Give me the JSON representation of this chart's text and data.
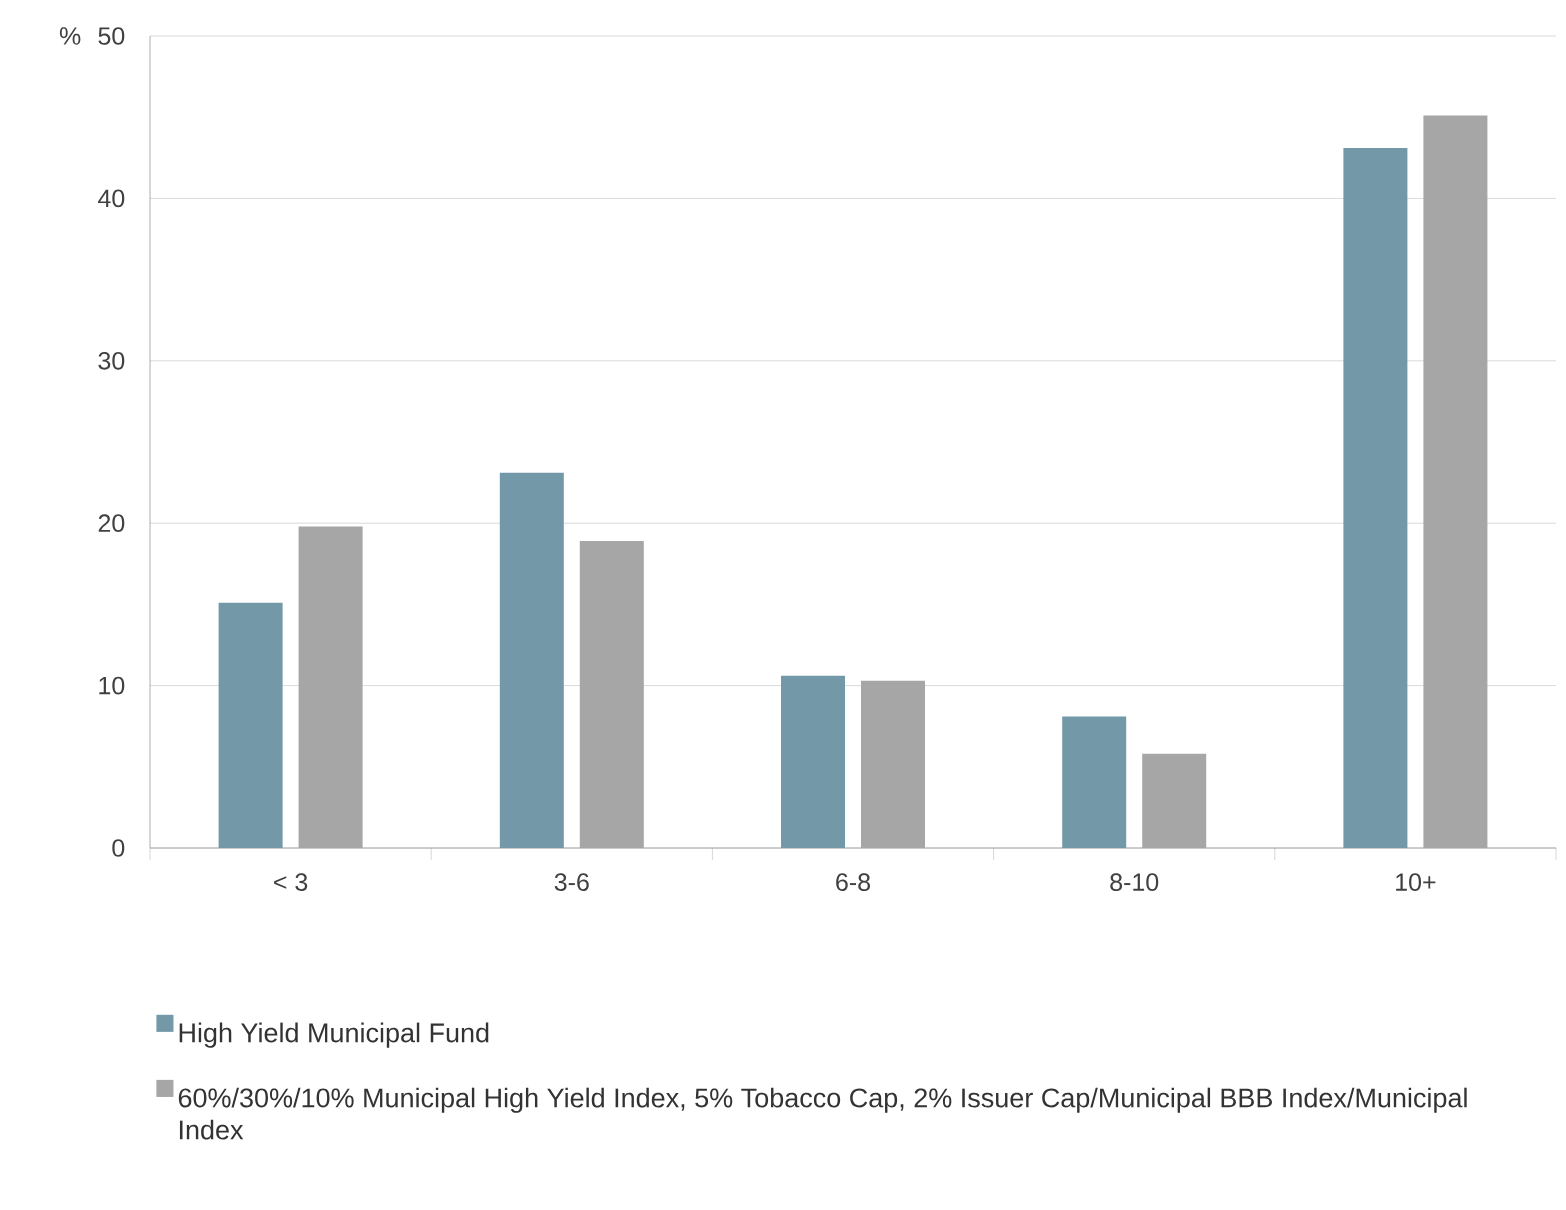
{
  "chart_data": {
    "type": "bar",
    "ylabel": "%",
    "categories": [
      "< 3",
      "3-6",
      "6-8",
      "8-10",
      "10+"
    ],
    "series": [
      {
        "name": "High Yield Municipal Fund",
        "color": "#7399a8",
        "values": [
          15.1,
          23.1,
          10.6,
          8.1,
          43.1
        ]
      },
      {
        "name": "60%/30%/10% Municipal High Yield Index, 5% Tobacco Cap, 2% Issuer Cap/Municipal BBB Index/Municipal Index",
        "color": "#a6a6a6",
        "values": [
          19.8,
          18.9,
          10.3,
          5.8,
          45.1
        ]
      }
    ],
    "ylim": [
      0,
      50
    ],
    "yticks": [
      0,
      10,
      20,
      30,
      40,
      50
    ],
    "grid": "y",
    "legend": "bottom"
  }
}
